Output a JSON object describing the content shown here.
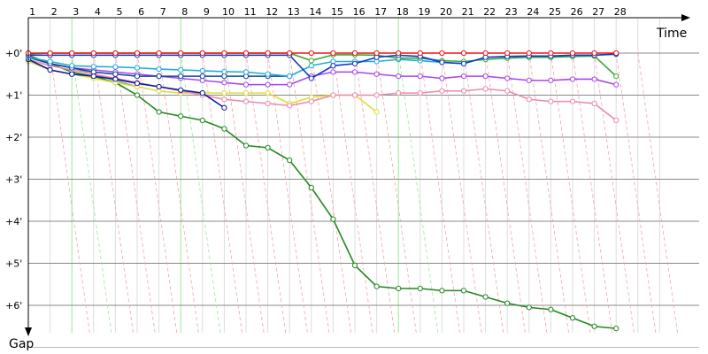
{
  "chart_data": {
    "type": "line",
    "title": "",
    "xlabel": "Time",
    "ylabel": "Gap",
    "x_ticks": [
      "1",
      "2",
      "3",
      "4",
      "5",
      "6",
      "7",
      "8",
      "9",
      "10",
      "11",
      "12",
      "13",
      "14",
      "15",
      "16",
      "17",
      "18",
      "19",
      "20",
      "21",
      "22",
      "23",
      "24",
      "25",
      "26",
      "27",
      "28"
    ],
    "y_ticks": [
      "+0'",
      "+1'",
      "+2'",
      "+3'",
      "+4'",
      "+5'",
      "+6'"
    ],
    "y_unit": "minutes",
    "ylim": [
      0,
      7
    ],
    "grid": true,
    "pit_stop_laps": [
      2,
      7,
      17
    ],
    "series": [
      {
        "color": "#ee1111",
        "values": [
          0,
          0,
          0,
          0,
          0,
          0,
          0,
          0,
          0,
          0,
          0,
          0,
          0,
          0,
          0,
          0,
          0,
          0,
          0,
          0,
          0,
          0,
          0,
          0,
          0,
          0,
          0,
          0
        ]
      },
      {
        "color": "#1133cc",
        "values": [
          0.05,
          0.05,
          0.05,
          0.05,
          0.05,
          0.05,
          0.05,
          0.05,
          0.05,
          0.05,
          0.05,
          0.05,
          0.05,
          0.6,
          0.3,
          0.25,
          0.1,
          0.05,
          0.08,
          0.22,
          0.25,
          0.1,
          0.08,
          0.07,
          0.07,
          0.05,
          0.05,
          0.02
        ]
      },
      {
        "color": "#33aa33",
        "values": [
          0.02,
          0,
          0,
          0,
          0,
          0,
          0,
          0,
          0,
          0,
          0,
          0,
          0,
          0.18,
          0.04,
          0.04,
          0.05,
          0.12,
          0.12,
          0.18,
          0.2,
          0.15,
          0.12,
          0.1,
          0.1,
          0.08,
          0.07,
          0.55
        ]
      },
      {
        "color": "#22aadd",
        "values": [
          0.1,
          0.2,
          0.3,
          0.32,
          0.33,
          0.35,
          0.38,
          0.4,
          0.42,
          0.44,
          0.45,
          0.5,
          0.55,
          0.3,
          0.2,
          0.2,
          0.2,
          0.15,
          0.18,
          0.22,
          0.25,
          0.1,
          0.08,
          0.07,
          0.07,
          0.05,
          0.05,
          0.03
        ]
      },
      {
        "color": "#0d1a99",
        "values": [
          0.15,
          0.4,
          0.5,
          0.55,
          0.62,
          0.72,
          0.8,
          0.88,
          0.95,
          1.3
        ]
      },
      {
        "color": "#114499",
        "values": [
          0.1,
          0.25,
          0.35,
          0.45,
          0.5,
          0.55,
          0.55,
          0.55,
          0.55,
          0.55,
          0.55,
          0.55,
          0.55
        ]
      },
      {
        "color": "#aa44ee",
        "values": [
          0.1,
          0.25,
          0.35,
          0.4,
          0.45,
          0.5,
          0.55,
          0.6,
          0.65,
          0.7,
          0.75,
          0.75,
          0.75,
          0.55,
          0.45,
          0.45,
          0.5,
          0.55,
          0.55,
          0.6,
          0.55,
          0.55,
          0.6,
          0.65,
          0.65,
          0.62,
          0.62,
          0.75
        ]
      },
      {
        "color": "#ee88aa",
        "values": [
          0.15,
          0.3,
          0.4,
          0.5,
          0.6,
          0.7,
          0.8,
          0.9,
          1.0,
          1.1,
          1.15,
          1.2,
          1.25,
          1.15,
          1.0,
          1.0,
          1.0,
          0.95,
          0.95,
          0.9,
          0.9,
          0.85,
          0.9,
          1.1,
          1.15,
          1.15,
          1.2,
          1.6
        ]
      },
      {
        "color": "#dddd33",
        "values": [
          0.2,
          0.4,
          0.5,
          0.6,
          0.7,
          0.8,
          0.9,
          0.95,
          0.95,
          0.95,
          0.95,
          0.95,
          1.2,
          1.05,
          1.0,
          1.0,
          1.4
        ]
      },
      {
        "color": "#999999",
        "values": [
          0.1,
          0.25,
          0.35,
          0.5,
          0.65,
          0.8
        ]
      },
      {
        "color": "#228822",
        "values": [
          0.05,
          0.25,
          0.45,
          0.55,
          0.7,
          1.0,
          1.4,
          1.5,
          1.6,
          1.8,
          2.2,
          2.25,
          2.55,
          3.2,
          3.95,
          5.05,
          5.55,
          5.6,
          5.6,
          5.65,
          5.65,
          5.8,
          5.95,
          6.05,
          6.1,
          6.3,
          6.5,
          6.55
        ]
      }
    ]
  }
}
